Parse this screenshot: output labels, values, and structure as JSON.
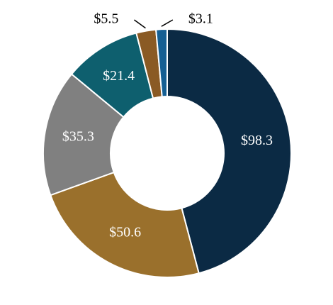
{
  "chart_data": {
    "type": "donut",
    "values": [
      98.3,
      50.6,
      35.3,
      21.4,
      5.5,
      3.1
    ],
    "value_labels": [
      "$98.3",
      "$50.6",
      "$35.3",
      "$21.4",
      "$5.5",
      "$3.1"
    ],
    "colors": [
      "#0b2a44",
      "#9a702c",
      "#808080",
      "#0e5f6e",
      "#8a5a24",
      "#155f93"
    ]
  }
}
